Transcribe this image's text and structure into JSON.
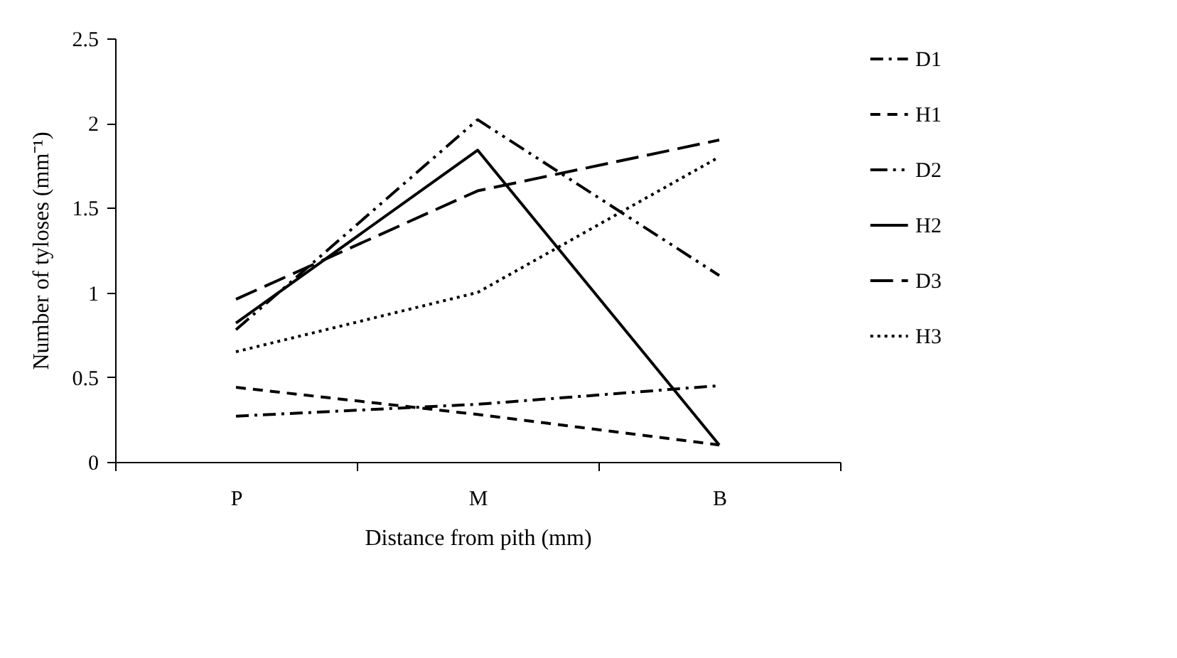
{
  "chart_data": {
    "type": "line",
    "xlabel": "Distance from pith (mm)",
    "ylabel": "Number of tyloses (mm⁻¹)",
    "categories": [
      "P",
      "M",
      "B"
    ],
    "ylim": [
      0,
      2.5
    ],
    "yticks": [
      0,
      0.5,
      1,
      1.5,
      2,
      2.5
    ],
    "grid": false,
    "legend": "right",
    "marker": "none",
    "series": [
      {
        "name": "D1",
        "color": "#000000",
        "line_style": "dashdot",
        "values": [
          0.27,
          0.34,
          0.45
        ]
      },
      {
        "name": "H1",
        "color": "#000000",
        "line_style": "dashed",
        "values": [
          0.44,
          0.28,
          0.1
        ]
      },
      {
        "name": "D2",
        "color": "#000000",
        "line_style": "dashdotdot",
        "values": [
          0.78,
          2.02,
          1.1
        ]
      },
      {
        "name": "H2",
        "color": "#000000",
        "line_style": "solid",
        "values": [
          0.82,
          1.84,
          0.1
        ]
      },
      {
        "name": "D3",
        "color": "#000000",
        "line_style": "longdash",
        "values": [
          0.96,
          1.6,
          1.9
        ]
      },
      {
        "name": "H3",
        "color": "#000000",
        "line_style": "dotted",
        "values": [
          0.65,
          1.0,
          1.8
        ]
      }
    ]
  }
}
